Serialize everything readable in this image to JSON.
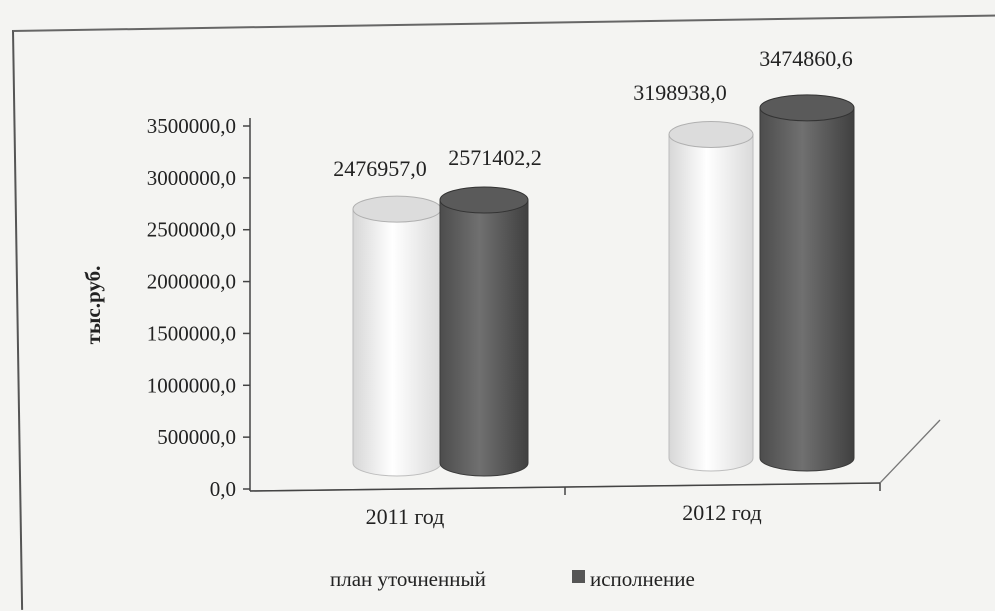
{
  "chart_data": {
    "type": "bar",
    "style": "3d-cylinder",
    "title": "",
    "xlabel": "",
    "ylabel": "тыс.руб.",
    "ylim": [
      0,
      3500000
    ],
    "yticks": [
      "0,0",
      "500000,0",
      "1000000,0",
      "1500000,0",
      "2000000,0",
      "2500000,0",
      "3000000,0",
      "3500000,0"
    ],
    "categories": [
      "2011 год",
      "2012 год"
    ],
    "series": [
      {
        "name": "план уточненный",
        "color": "#f2f2f2",
        "values": [
          2476957.0,
          3198938.0
        ],
        "labels": [
          "2476957,0",
          "3198938,0"
        ]
      },
      {
        "name": "исполнение",
        "color": "#5e5e5e",
        "values": [
          2571402.2,
          3474860.6
        ],
        "labels": [
          "2571402,2",
          "3474860,6"
        ]
      }
    ],
    "legend_position": "bottom",
    "grid": false
  }
}
